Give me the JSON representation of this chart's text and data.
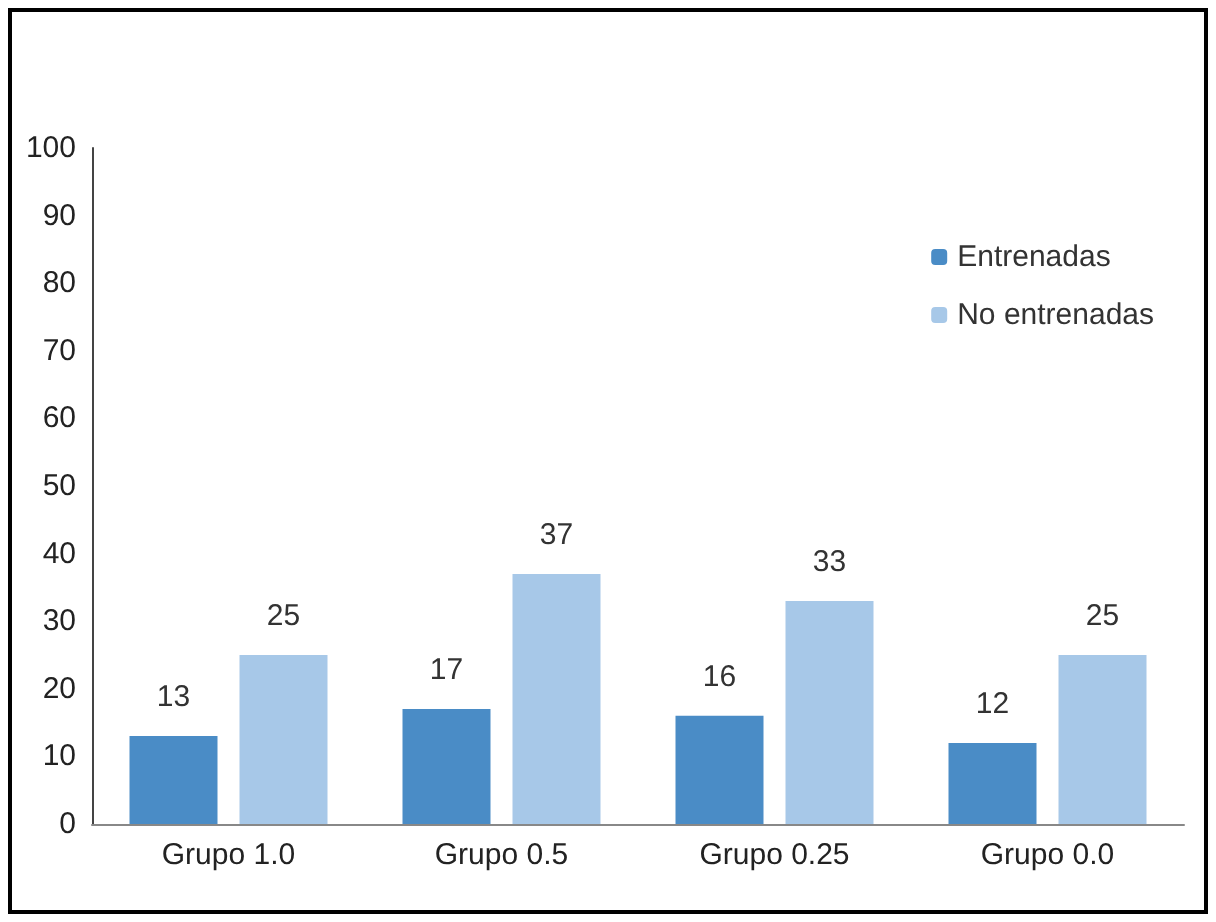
{
  "chart_data": {
    "type": "bar",
    "categories": [
      "Grupo 1.0",
      "Grupo 0.5",
      "Grupo 0.25",
      "Grupo 0.0"
    ],
    "series": [
      {
        "name": "Entrenadas",
        "color": "#4a8cc6",
        "values": [
          13,
          17,
          16,
          12
        ]
      },
      {
        "name": "No entrenadas",
        "color": "#a7c8e8",
        "values": [
          25,
          37,
          33,
          25
        ]
      }
    ],
    "ylim": [
      0,
      100
    ],
    "yticks": [
      0,
      10,
      20,
      30,
      40,
      50,
      60,
      70,
      80,
      90,
      100
    ],
    "grid": false,
    "legend": "top right",
    "data_labels": true
  }
}
